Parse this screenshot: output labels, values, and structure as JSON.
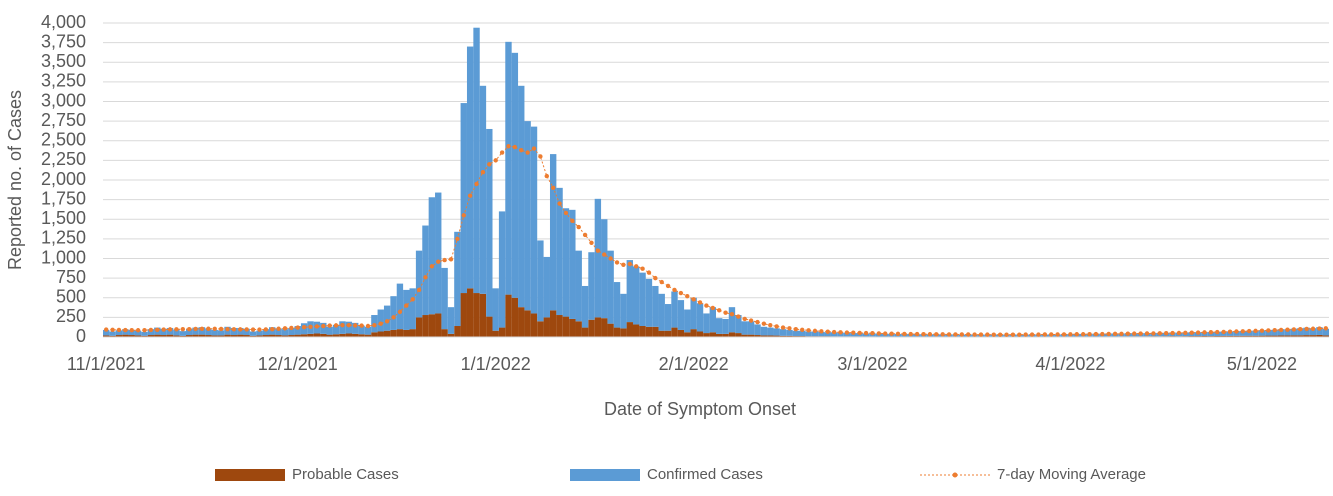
{
  "chart_data": {
    "type": "bar",
    "stacked": true,
    "y_label": "Reported no. of Cases",
    "x_label": "Date of Symptom Onset",
    "ylim": [
      0,
      4000
    ],
    "yticks": [
      0,
      250,
      500,
      750,
      {
        "value": 1000,
        "label": "1,000"
      },
      {
        "value": 1250,
        "label": "1,250"
      },
      {
        "value": 1500,
        "label": "1,500"
      },
      {
        "value": 1750,
        "label": "1,750"
      },
      {
        "value": 2000,
        "label": "2,000"
      },
      {
        "value": 2250,
        "label": "2,250"
      },
      {
        "value": 2500,
        "label": "2,500"
      },
      {
        "value": 2750,
        "label": "2,750"
      },
      {
        "value": 3000,
        "label": "3,000"
      },
      {
        "value": 3250,
        "label": "3,250"
      },
      {
        "value": 3500,
        "label": "3,500"
      },
      {
        "value": 3750,
        "label": "3,750"
      },
      {
        "value": 4000,
        "label": "4,000"
      }
    ],
    "grid": true,
    "legend": "bottom",
    "categories": [
      "11/1/2021",
      null,
      null,
      null,
      null,
      null,
      null,
      null,
      null,
      null,
      null,
      null,
      null,
      null,
      null,
      null,
      null,
      null,
      null,
      null,
      null,
      null,
      null,
      null,
      null,
      null,
      null,
      null,
      null,
      null,
      "12/1/2021",
      null,
      null,
      null,
      null,
      null,
      null,
      null,
      null,
      null,
      null,
      null,
      null,
      null,
      null,
      null,
      null,
      null,
      null,
      null,
      null,
      null,
      null,
      null,
      null,
      null,
      null,
      null,
      null,
      null,
      null,
      "1/1/2022",
      null,
      null,
      null,
      null,
      null,
      null,
      null,
      null,
      null,
      null,
      null,
      null,
      null,
      null,
      null,
      null,
      null,
      null,
      null,
      null,
      null,
      null,
      null,
      null,
      null,
      null,
      null,
      null,
      null,
      null,
      "2/1/2022",
      null,
      null,
      null,
      null,
      null,
      null,
      null,
      null,
      null,
      null,
      null,
      null,
      null,
      null,
      null,
      null,
      null,
      null,
      null,
      null,
      null,
      null,
      null,
      null,
      null,
      null,
      null,
      "3/1/2022",
      null,
      null,
      null,
      null,
      null,
      null,
      null,
      null,
      null,
      null,
      null,
      null,
      null,
      null,
      null,
      null,
      null,
      null,
      null,
      null,
      null,
      null,
      null,
      null,
      null,
      null,
      null,
      null,
      null,
      null,
      "4/1/2022",
      null,
      null,
      null,
      null,
      null,
      null,
      null,
      null,
      null,
      null,
      null,
      null,
      null,
      null,
      null,
      null,
      null,
      null,
      null,
      null,
      null,
      null,
      null,
      null,
      null,
      null,
      null,
      null,
      null,
      "5/1/2022",
      null,
      null,
      null,
      null,
      null,
      null,
      null,
      null,
      null,
      null
    ],
    "series": [
      {
        "name": "Probable Cases",
        "type": "bar",
        "color": "#9e480e",
        "values": [
          20,
          15,
          25,
          30,
          25,
          20,
          15,
          25,
          30,
          25,
          30,
          20,
          15,
          25,
          30,
          30,
          25,
          20,
          20,
          30,
          25,
          30,
          25,
          15,
          20,
          25,
          30,
          25,
          20,
          25,
          30,
          35,
          40,
          45,
          40,
          30,
          35,
          40,
          45,
          40,
          35,
          30,
          60,
          70,
          80,
          90,
          100,
          90,
          100,
          250,
          280,
          290,
          300,
          100,
          40,
          140,
          560,
          620,
          560,
          550,
          260,
          80,
          120,
          540,
          500,
          380,
          340,
          300,
          200,
          250,
          340,
          280,
          260,
          230,
          200,
          120,
          220,
          250,
          240,
          170,
          120,
          110,
          190,
          160,
          140,
          130,
          130,
          80,
          80,
          120,
          90,
          60,
          100,
          70,
          50,
          60,
          40,
          40,
          60,
          50,
          30,
          30,
          25,
          20,
          20,
          18,
          15,
          15,
          12,
          12,
          10,
          10,
          10,
          10,
          8,
          8,
          8,
          8,
          8,
          7,
          7,
          6,
          6,
          5,
          5,
          6,
          5,
          5,
          6,
          5,
          5,
          4,
          5,
          5,
          4,
          5,
          5,
          4,
          5,
          5,
          4,
          5,
          5,
          4,
          5,
          5,
          5,
          4,
          5,
          5,
          5,
          6,
          6,
          7,
          7,
          6,
          7,
          8,
          7,
          8,
          8,
          9,
          8,
          9,
          10,
          9,
          10,
          11,
          10,
          11,
          12,
          12,
          13,
          12,
          13,
          14,
          14,
          15,
          15,
          16,
          16,
          17,
          18,
          18,
          20,
          20,
          22,
          22,
          24,
          24,
          26,
          20
        ]
      },
      {
        "name": "Confirmed Cases",
        "type": "bar",
        "color": "#5b9bd5",
        "values": [
          70,
          55,
          60,
          70,
          65,
          60,
          50,
          75,
          90,
          80,
          85,
          75,
          60,
          80,
          90,
          95,
          85,
          70,
          65,
          100,
          90,
          85,
          80,
          55,
          60,
          75,
          95,
          85,
          80,
          90,
          110,
          140,
          160,
          150,
          140,
          100,
          120,
          160,
          150,
          140,
          110,
          100,
          220,
          280,
          320,
          430,
          580,
          510,
          520,
          850,
          1140,
          1490,
          1540,
          780,
          340,
          1200,
          2420,
          3080,
          3380,
          2650,
          2390,
          540,
          1480,
          3220,
          3120,
          2820,
          2410,
          2380,
          1030,
          770,
          1990,
          1620,
          1380,
          1390,
          900,
          530,
          860,
          1510,
          1260,
          930,
          580,
          440,
          790,
          740,
          680,
          610,
          520,
          470,
          340,
          460,
          380,
          290,
          400,
          360,
          250,
          320,
          200,
          190,
          320,
          230,
          170,
          170,
          135,
          110,
          100,
          92,
          85,
          75,
          68,
          68,
          60,
          60,
          55,
          50,
          52,
          47,
          47,
          42,
          42,
          38,
          38,
          38,
          35,
          36,
          33,
          32,
          34,
          30,
          31,
          30,
          29,
          30,
          28,
          29,
          28,
          27,
          28,
          27,
          26,
          28,
          27,
          26,
          27,
          28,
          27,
          26,
          28,
          27,
          29,
          28,
          30,
          32,
          34,
          33,
          35,
          36,
          35,
          37,
          38,
          37,
          39,
          40,
          41,
          40,
          42,
          43,
          44,
          46,
          45,
          47,
          48,
          50,
          52,
          51,
          54,
          56,
          58,
          60,
          62,
          64,
          66,
          70,
          72,
          75,
          80,
          78,
          85,
          90,
          95,
          88,
          100,
          85
        ]
      },
      {
        "name": "7-day Moving Average",
        "type": "line",
        "color": "#ed7d31",
        "values": [
          95,
          92,
          90,
          88,
          87,
          86,
          87,
          90,
          92,
          95,
          97,
          98,
          99,
          100,
          102,
          104,
          105,
          104,
          102,
          100,
          98,
          97,
          96,
          95,
          94,
          96,
          100,
          105,
          110,
          115,
          120,
          125,
          130,
          135,
          140,
          145,
          148,
          150,
          150,
          148,
          145,
          140,
          150,
          170,
          200,
          250,
          320,
          400,
          480,
          600,
          760,
          900,
          960,
          980,
          990,
          1250,
          1550,
          1800,
          1950,
          2100,
          2200,
          2250,
          2350,
          2430,
          2420,
          2380,
          2350,
          2400,
          2300,
          2050,
          1900,
          1700,
          1580,
          1480,
          1400,
          1300,
          1200,
          1100,
          1050,
          1000,
          950,
          920,
          930,
          900,
          870,
          820,
          750,
          700,
          650,
          600,
          560,
          520,
          480,
          440,
          400,
          370,
          340,
          310,
          290,
          260,
          230,
          210,
          190,
          170,
          150,
          135,
          120,
          110,
          100,
          92,
          85,
          78,
          72,
          67,
          63,
          60,
          57,
          55,
          52,
          50,
          48,
          46,
          44,
          42,
          40,
          39,
          38,
          37,
          36,
          35,
          34,
          34,
          33,
          33,
          32,
          32,
          31,
          31,
          31,
          30,
          30,
          30,
          30,
          30,
          31,
          31,
          31,
          32,
          32,
          33,
          33,
          34,
          35,
          35,
          36,
          37,
          38,
          39,
          40,
          41,
          42,
          43,
          44,
          45,
          46,
          47,
          48,
          50,
          51,
          53,
          55,
          57,
          59,
          61,
          63,
          65,
          67,
          70,
          72,
          75,
          78,
          81,
          84,
          87,
          90,
          93,
          96,
          99,
          102,
          105,
          108,
          110
        ]
      }
    ]
  }
}
